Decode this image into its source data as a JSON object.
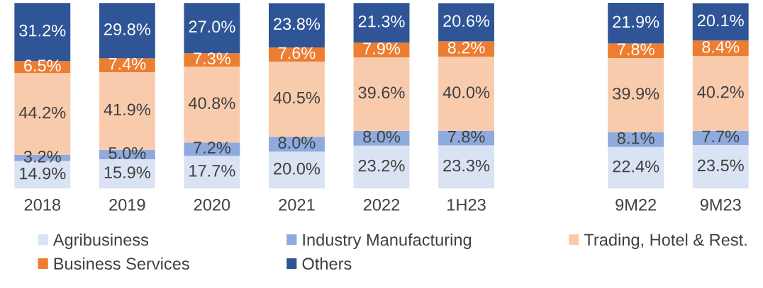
{
  "chart_data": {
    "type": "bar",
    "stacked": true,
    "categories": [
      "2018",
      "2019",
      "2020",
      "2021",
      "2022",
      "1H23",
      null,
      "9M22",
      "9M23"
    ],
    "series": [
      {
        "name": "Agribusiness",
        "color": "#dae3f3",
        "values": [
          14.9,
          15.9,
          17.7,
          20.0,
          23.2,
          23.3,
          null,
          22.4,
          23.5
        ],
        "value_labels": [
          "14.9%",
          "15.9%",
          "17.7%",
          "20.0%",
          "23.2%",
          "23.3%",
          null,
          "22.4%",
          "23.5%"
        ]
      },
      {
        "name": "Industry Manufacturing",
        "color": "#8faadc",
        "values": [
          3.2,
          5.0,
          7.2,
          8.0,
          8.0,
          7.8,
          null,
          8.1,
          7.7
        ],
        "value_labels": [
          "3.2%",
          "5.0%",
          "7.2%",
          "8.0%",
          "8.0%",
          "7.8%",
          null,
          "8.1%",
          "7.7%"
        ]
      },
      {
        "name": "Trading, Hotel & Rest.",
        "color": "#f8cbad",
        "values": [
          44.2,
          41.9,
          40.8,
          40.5,
          39.6,
          40.0,
          null,
          39.9,
          40.2
        ],
        "value_labels": [
          "44.2%",
          "41.9%",
          "40.8%",
          "40.5%",
          "39.6%",
          "40.0%",
          null,
          "39.9%",
          "40.2%"
        ]
      },
      {
        "name": "Business Services",
        "color": "#ed7d31",
        "values": [
          6.5,
          7.4,
          7.3,
          7.6,
          7.9,
          8.2,
          null,
          7.8,
          8.4
        ],
        "value_labels": [
          "6.5%",
          "7.4%",
          "7.3%",
          "7.6%",
          "7.9%",
          "8.2%",
          null,
          "7.8%",
          "8.4%"
        ]
      },
      {
        "name": "Others",
        "color": "#2f5597",
        "values": [
          31.2,
          29.8,
          27.0,
          23.8,
          21.3,
          20.6,
          null,
          21.9,
          20.1
        ],
        "value_labels": [
          "31.2%",
          "29.8%",
          "27.0%",
          "23.8%",
          "21.3%",
          "20.6%",
          null,
          "21.9%",
          "20.1%"
        ]
      }
    ],
    "legend": "bottom",
    "grid": false
  }
}
